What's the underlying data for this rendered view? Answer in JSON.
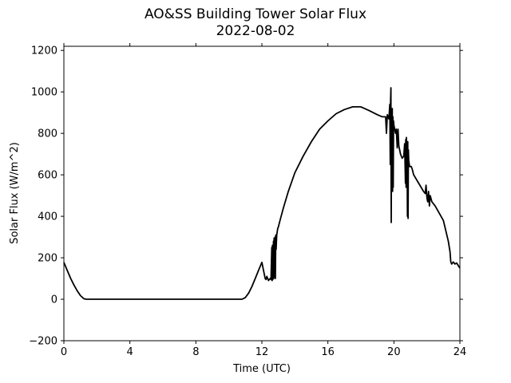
{
  "chart_data": {
    "type": "line",
    "title": "AO&SS Building Tower Solar Flux",
    "subtitle": "2022-08-02",
    "xlabel": "Time (UTC)",
    "ylabel": "Solar Flux (W/m^2)",
    "xlim": [
      0,
      24
    ],
    "ylim": [
      -200,
      1220
    ],
    "xticks": [
      0,
      4,
      8,
      12,
      16,
      20,
      24
    ],
    "yticks": [
      -200,
      0,
      200,
      400,
      600,
      800,
      1000,
      1200
    ],
    "grid": false,
    "legend": "none",
    "line_color": "#000000",
    "series": [
      {
        "x": [
          0,
          0.2,
          0.4,
          0.6,
          0.8,
          1.0,
          1.2,
          1.35,
          2,
          4,
          6,
          8,
          10,
          10.8,
          11.0,
          11.2,
          11.4,
          11.6,
          11.8,
          12.0,
          12.2,
          12.25,
          12.3,
          12.4,
          12.5,
          12.55,
          12.6,
          12.62,
          12.64,
          12.66,
          12.7,
          12.72,
          12.74,
          12.76,
          12.8,
          12.82,
          12.84,
          12.86,
          12.9,
          12.92,
          12.94,
          12.96,
          13.0,
          13.1,
          13.3,
          13.6,
          14.0,
          14.5,
          15.0,
          15.5,
          16.0,
          16.5,
          17.0,
          17.5,
          18.0,
          18.5,
          19.0,
          19.3,
          19.5,
          19.55,
          19.6,
          19.7,
          19.75,
          19.78,
          19.8,
          19.82,
          19.84,
          19.86,
          19.88,
          19.9,
          19.92,
          19.94,
          19.96,
          19.98,
          20.0,
          20.05,
          20.1,
          20.15,
          20.2,
          20.25,
          20.3,
          20.4,
          20.5,
          20.6,
          20.65,
          20.7,
          20.72,
          20.74,
          20.76,
          20.78,
          20.8,
          20.82,
          20.84,
          20.86,
          20.88,
          20.9,
          20.95,
          21.0,
          21.05,
          21.1,
          21.2,
          21.5,
          21.8,
          21.9,
          21.95,
          22.0,
          22.05,
          22.1,
          22.15,
          22.2,
          22.3,
          22.5,
          23.0,
          23.3,
          23.4,
          23.45,
          23.5,
          23.6,
          23.7,
          23.8,
          24.0
        ],
        "y": [
          178,
          140,
          102,
          70,
          42,
          18,
          3,
          0,
          0,
          0,
          0,
          0,
          0,
          0,
          8,
          30,
          62,
          100,
          140,
          178,
          100,
          95,
          110,
          90,
          100,
          95,
          250,
          90,
          260,
          95,
          280,
          100,
          295,
          110,
          300,
          100,
          310,
          240,
          310,
          320,
          330,
          340,
          350,
          380,
          440,
          520,
          610,
          690,
          760,
          820,
          860,
          895,
          915,
          928,
          928,
          910,
          890,
          880,
          880,
          800,
          890,
          870,
          940,
          650,
          960,
          1020,
          370,
          880,
          600,
          920,
          520,
          880,
          540,
          860,
          840,
          820,
          800,
          820,
          730,
          820,
          740,
          700,
          680,
          690,
          750,
          560,
          770,
          540,
          780,
          640,
          660,
          400,
          760,
          390,
          720,
          670,
          640,
          640,
          640,
          630,
          600,
          560,
          520,
          510,
          550,
          490,
          470,
          520,
          450,
          500,
          470,
          450,
          380,
          280,
          230,
          180,
          170,
          180,
          170,
          175,
          150
        ]
      }
    ]
  }
}
